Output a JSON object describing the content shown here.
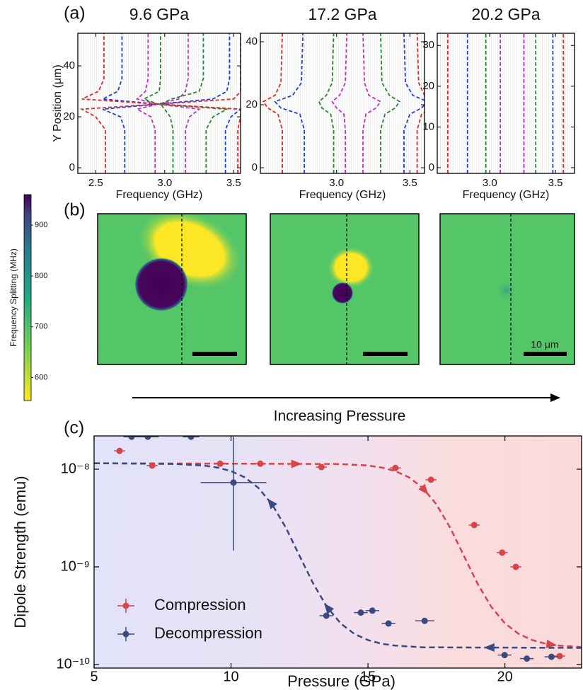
{
  "chart_data": [
    {
      "type": "line",
      "panel": "(a)",
      "title": "9.6 GPa",
      "xlabel": "Frequency (GHz)",
      "ylabel": "Y Position (μm)",
      "xlim": [
        2.37,
        3.55
      ],
      "ylim": [
        -2.2,
        52.8
      ],
      "xticks": [
        2.5,
        {
          "value": 3,
          "label": "3.0"
        },
        3.5
      ],
      "yticks": [
        0,
        20,
        40
      ],
      "y": [
        -2.2,
        15,
        20,
        23,
        25,
        27,
        30,
        35,
        52.8
      ],
      "series": [
        {
          "color": "#e8262a",
          "values": [
            2.57,
            2.57,
            2.5,
            2.4,
            2.95,
            3.5,
            3.55,
            3.55,
            3.55
          ]
        },
        {
          "color": "#1f3fd8",
          "values": [
            2.71,
            2.71,
            2.68,
            2.55,
            2.95,
            3.35,
            3.45,
            3.47,
            3.47
          ]
        },
        {
          "color": "#c22ec8",
          "values": [
            2.93,
            2.93,
            2.9,
            2.8,
            2.95,
            3.1,
            3.15,
            3.17,
            3.17
          ]
        },
        {
          "color": "#1f8a2a",
          "values": [
            3.06,
            3.06,
            3.04,
            3.0,
            2.97,
            3.05,
            3.25,
            3.28,
            3.28
          ]
        },
        {
          "color": "#c22ec8",
          "values": [
            3.15,
            3.15,
            3.18,
            3.25,
            2.95,
            2.8,
            2.86,
            2.88,
            2.88
          ]
        },
        {
          "color": "#1f8a2a",
          "values": [
            3.3,
            3.3,
            3.35,
            3.45,
            2.95,
            2.85,
            2.96,
            2.97,
            2.97
          ]
        },
        {
          "color": "#1f3fd8",
          "values": [
            3.44,
            3.44,
            3.48,
            3.55,
            2.95,
            2.55,
            2.66,
            2.69,
            2.69
          ]
        },
        {
          "color": "#e8262a",
          "values": [
            3.53,
            3.53,
            3.55,
            3.55,
            2.95,
            2.4,
            2.52,
            2.56,
            2.56
          ]
        }
      ]
    },
    {
      "type": "line",
      "title": "17.2 GPa",
      "xlabel": "Frequency (GHz)",
      "xlim": [
        2.48,
        3.6
      ],
      "ylim": [
        -1.8,
        42.7
      ],
      "xticks": [
        {
          "value": 3,
          "label": "3.0"
        },
        3.5
      ],
      "yticks": [
        0,
        20,
        40
      ],
      "y": [
        -1.8,
        12,
        17,
        19,
        21,
        23,
        27,
        42.7
      ],
      "series": [
        {
          "color": "#e8262a",
          "values": [
            2.63,
            2.63,
            2.6,
            2.53,
            2.5,
            2.58,
            2.62,
            2.63
          ]
        },
        {
          "color": "#1f3fd8",
          "values": [
            2.78,
            2.78,
            2.75,
            2.62,
            2.58,
            2.7,
            2.76,
            2.77
          ]
        },
        {
          "color": "#1f8a2a",
          "values": [
            2.98,
            2.98,
            2.96,
            2.9,
            2.88,
            2.93,
            2.97,
            2.98
          ]
        },
        {
          "color": "#c22ec8",
          "values": [
            3.06,
            3.06,
            3.05,
            3.0,
            2.97,
            3.02,
            3.06,
            3.07
          ]
        },
        {
          "color": "#c22ec8",
          "values": [
            3.18,
            3.18,
            3.2,
            3.27,
            3.3,
            3.22,
            3.19,
            3.18
          ]
        },
        {
          "color": "#1f8a2a",
          "values": [
            3.3,
            3.3,
            3.33,
            3.4,
            3.43,
            3.36,
            3.31,
            3.3
          ]
        },
        {
          "color": "#1f3fd8",
          "values": [
            3.46,
            3.46,
            3.5,
            3.58,
            3.62,
            3.52,
            3.47,
            3.46
          ]
        },
        {
          "color": "#e8262a",
          "values": [
            3.55,
            3.55,
            3.58,
            3.64,
            3.64,
            3.6,
            3.56,
            3.55
          ]
        }
      ]
    },
    {
      "type": "line",
      "title": "20.2 GPa",
      "xlabel": "Frequency (GHz)",
      "xlim": [
        2.6,
        3.645
      ],
      "ylim": [
        -1.4,
        33
      ],
      "xticks": [
        {
          "value": 3,
          "label": "3.0"
        },
        3.5
      ],
      "yticks": [
        0,
        10,
        20,
        30
      ],
      "y": [
        -1.4,
        15,
        33
      ],
      "series": [
        {
          "color": "#e8262a",
          "values": [
            2.68,
            2.68,
            2.68
          ]
        },
        {
          "color": "#1f3fd8",
          "values": [
            2.83,
            2.83,
            2.83
          ]
        },
        {
          "color": "#1f8a2a",
          "values": [
            2.97,
            2.97,
            2.97
          ]
        },
        {
          "color": "#c22ec8",
          "values": [
            3.08,
            3.08,
            3.08
          ]
        },
        {
          "color": "#c22ec8",
          "values": [
            3.26,
            3.26,
            3.26
          ]
        },
        {
          "color": "#1f8a2a",
          "values": [
            3.35,
            3.35,
            3.35
          ]
        },
        {
          "color": "#1f3fd8",
          "values": [
            3.48,
            3.48,
            3.48
          ]
        },
        {
          "color": "#e8262a",
          "values": [
            3.56,
            3.56,
            3.56
          ]
        }
      ]
    },
    {
      "type": "heatmap",
      "panel": "(b)",
      "colorbar_label": "Frequency Splitting (MHz)",
      "colorbar_lim": [
        555,
        960
      ],
      "colorbar_ticks": [
        600,
        700,
        800,
        900
      ],
      "scale_bar": "10 μm",
      "arrow_label": "Increasing Pressure"
    },
    {
      "type": "scatter",
      "panel": "(c)",
      "xlabel": "Pressure (GPa)",
      "ylabel": "Dipole Strength (emu)",
      "xlim": [
        5,
        22.8
      ],
      "ylim": [
        9.2e-11,
        2.19e-08
      ],
      "log_y": true,
      "legend": "lower left",
      "xticks": [
        5,
        10,
        15,
        20
      ],
      "yticks": [
        {
          "value": 1e-10,
          "label": "10⁻¹⁰"
        },
        {
          "value": 1e-09,
          "label": "10⁻⁹"
        },
        {
          "value": 1e-08,
          "label": "10⁻⁸"
        }
      ],
      "series": [
        {
          "name": "Compression",
          "color": "#d9434b",
          "x": [
            5.93,
            7.12,
            9.6,
            11.07,
            13.3,
            16.0,
            17.3,
            18.88,
            19.9,
            20.4,
            22.0
          ],
          "values": [
            1.54e-08,
            1.09e-08,
            1.14e-08,
            1.14e-08,
            1.05e-08,
            1.03e-08,
            7.8e-09,
            2.68e-09,
            1.4e-09,
            1e-09,
            1.22e-10
          ],
          "xerr": [
            0.2,
            0.2,
            0.2,
            0.2,
            0.2,
            0.2,
            0.2,
            0.2,
            0.2,
            0.2,
            0.2
          ]
        },
        {
          "name": "Decompression",
          "color": "#3b4a7e",
          "x": [
            6.37,
            6.96,
            8.54,
            10.09,
            13.48,
            14.74,
            15.16,
            15.75,
            17.07,
            19.99,
            20.8,
            21.7
          ],
          "values": [
            2.15e-08,
            2.15e-08,
            2.15e-08,
            7.3e-09,
            3.16e-10,
            3.4e-10,
            3.56e-10,
            2.63e-10,
            2.8e-10,
            1.25e-10,
            1.15e-10,
            1.2e-10
          ],
          "xerr": [
            0.3,
            0.4,
            0.3,
            1.2,
            0.25,
            0.25,
            0.25,
            0.25,
            0.35,
            0.25,
            0.25,
            0.25
          ],
          "yerr": [
            null,
            null,
            null,
            [
              5.83e-09,
              1.42e-08
            ],
            null,
            null,
            null,
            null,
            null,
            null,
            null,
            null
          ]
        }
      ],
      "fits": [
        {
          "color": "#d9434b",
          "x": [
            5,
            14,
            15,
            15.5,
            16,
            16.5,
            17,
            17.5,
            18,
            18.5,
            19,
            19.5,
            20,
            20.5,
            21,
            21.5,
            22,
            22.8
          ],
          "values": [
            1.15e-08,
            1.13e-08,
            1.09e-08,
            1.04e-08,
            9.56e-09,
            8.25e-09,
            6.44e-09,
            4.36e-09,
            2.52e-09,
            1.3e-09,
            6.75e-10,
            3.9e-10,
            2.64e-10,
            2.06e-10,
            1.78e-10,
            1.63e-10,
            1.56e-10,
            1.51e-10
          ]
        },
        {
          "color": "#3b4a7e",
          "x": [
            5,
            8,
            9,
            9.5,
            10,
            10.5,
            11,
            11.5,
            12,
            12.5,
            13,
            13.5,
            14,
            14.5,
            15,
            15.5,
            16,
            17,
            22.8
          ],
          "values": [
            1.15e-08,
            1.13e-08,
            1.09e-08,
            1.04e-08,
            9.56e-09,
            8.25e-09,
            6.44e-09,
            4.36e-09,
            2.52e-09,
            1.3e-09,
            6.75e-10,
            3.9e-10,
            2.64e-10,
            2.06e-10,
            1.78e-10,
            1.63e-10,
            1.56e-10,
            1.5e-10,
            1.48e-10
          ]
        }
      ]
    }
  ]
}
